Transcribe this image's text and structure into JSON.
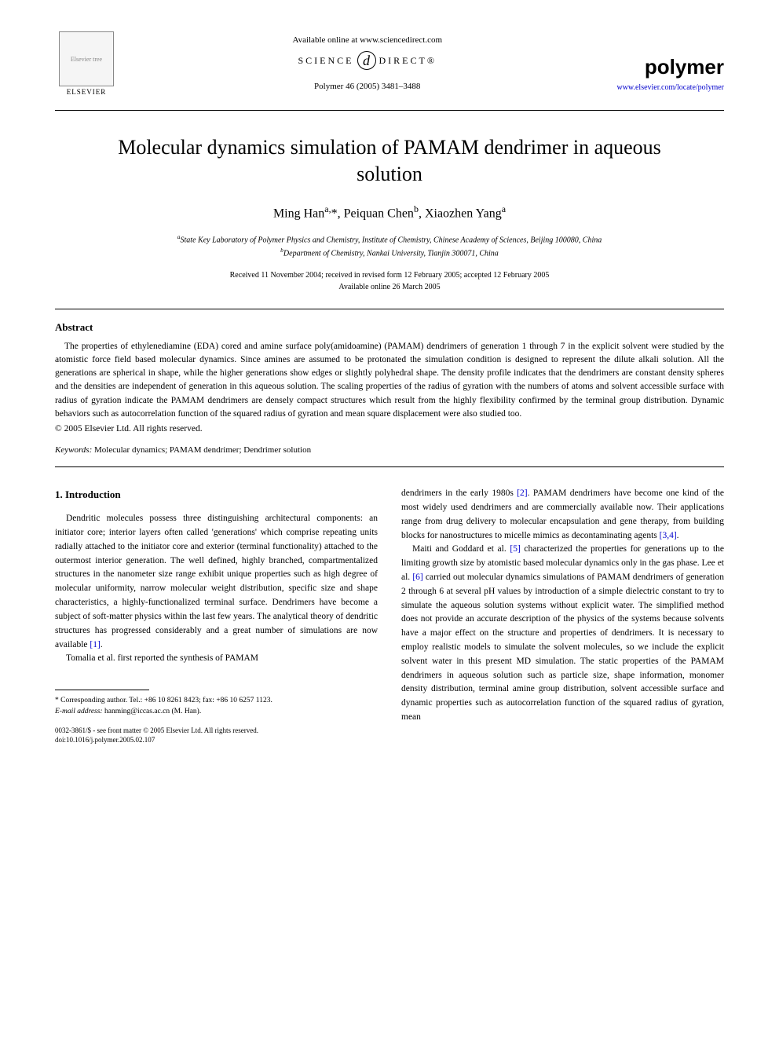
{
  "header": {
    "available_text": "Available online at www.sciencedirect.com",
    "science_direct_left": "SCIENCE",
    "science_direct_at": "d",
    "science_direct_right": "DIRECT®",
    "citation": "Polymer 46 (2005) 3481–3488",
    "publisher_name": "ELSEVIER",
    "publisher_logo_alt": "Elsevier tree",
    "journal_name": "polymer",
    "journal_url": "www.elsevier.com/locate/polymer"
  },
  "title": "Molecular dynamics simulation of PAMAM dendrimer in aqueous solution",
  "authors_html": "Ming Han<sup>a,</sup>*, Peiquan Chen<sup>b</sup>, Xiaozhen Yang<sup>a</sup>",
  "affiliations": {
    "a": "State Key Laboratory of Polymer Physics and Chemistry, Institute of Chemistry, Chinese Academy of Sciences, Beijing 100080, China",
    "b": "Department of Chemistry, Nankai University, Tianjin 300071, China"
  },
  "dates": {
    "line1": "Received 11 November 2004; received in revised form 12 February 2005; accepted 12 February 2005",
    "line2": "Available online 26 March 2005"
  },
  "abstract": {
    "heading": "Abstract",
    "text": "The properties of ethylenediamine (EDA) cored and amine surface poly(amidoamine) (PAMAM) dendrimers of generation 1 through 7 in the explicit solvent were studied by the atomistic force field based molecular dynamics. Since amines are assumed to be protonated the simulation condition is designed to represent the dilute alkali solution. All the generations are spherical in shape, while the higher generations show edges or slightly polyhedral shape. The density profile indicates that the dendrimers are constant density spheres and the densities are independent of generation in this aqueous solution. The scaling properties of the radius of gyration with the numbers of atoms and solvent accessible surface with radius of gyration indicate the PAMAM dendrimers are densely compact structures which result from the highly flexibility confirmed by the terminal group distribution. Dynamic behaviors such as autocorrelation function of the squared radius of gyration and mean square displacement were also studied too.",
    "copyright": "© 2005 Elsevier Ltd. All rights reserved."
  },
  "keywords": {
    "label": "Keywords:",
    "text": " Molecular dynamics; PAMAM dendrimer; Dendrimer solution"
  },
  "body": {
    "section_heading": "1. Introduction",
    "col1_p1": "Dendritic molecules possess three distinguishing architectural components: an initiator core; interior layers often called 'generations' which comprise repeating units radially attached to the initiator core and exterior (terminal functionality) attached to the outermost interior generation. The well defined, highly branched, compartmentalized structures in the nanometer size range exhibit unique properties such as high degree of molecular uniformity, narrow molecular weight distribution, specific size and shape characteristics, a highly-functionalized terminal surface. Dendrimers have become a subject of soft-matter physics within the last few years. The analytical theory of dendritic structures has progressed considerably and a great number of simulations are now available ",
    "col1_ref1": "[1]",
    "col1_p1_end": ".",
    "col1_p2": "Tomalia et al. first reported the synthesis of PAMAM",
    "col2_p1_a": "dendrimers in the early 1980s ",
    "col2_ref2": "[2]",
    "col2_p1_b": ". PAMAM dendrimers have become one kind of the most widely used dendrimers and are commercially available now. Their applications range from drug delivery to molecular encapsulation and gene therapy, from building blocks for nanostructures to micelle mimics as decontaminating agents ",
    "col2_ref34": "[3,4]",
    "col2_p1_c": ".",
    "col2_p2_a": "Maiti and Goddard et al. ",
    "col2_ref5": "[5]",
    "col2_p2_b": " characterized the properties for generations up to the limiting growth size by atomistic based molecular dynamics only in the gas phase. Lee et al. ",
    "col2_ref6": "[6]",
    "col2_p2_c": " carried out molecular dynamics simulations of PAMAM dendrimers of generation 2 through 6 at several pH values by introduction of a simple dielectric constant to try to simulate the aqueous solution systems without explicit water. The simplified method does not provide an accurate description of the physics of the systems because solvents have a major effect on the structure and properties of dendrimers. It is necessary to employ realistic models to simulate the solvent molecules, so we include the explicit solvent water in this present MD simulation. The static properties of the PAMAM dendrimers in aqueous solution such as particle size, shape information, monomer density distribution, terminal amine group distribution, solvent accessible surface and dynamic properties such as autocorrelation function of the squared radius of gyration, mean"
  },
  "footnotes": {
    "corr": "* Corresponding author. Tel.: +86 10 8261 8423; fax: +86 10 6257 1123.",
    "email_label": "E-mail address:",
    "email": " hanming@iccas.ac.cn (M. Han).",
    "issn": "0032-3861/$ - see front matter © 2005 Elsevier Ltd. All rights reserved.",
    "doi": "doi:10.1016/j.polymer.2005.02.107"
  },
  "colors": {
    "link": "#0000cc",
    "text": "#000000",
    "bg": "#ffffff"
  }
}
